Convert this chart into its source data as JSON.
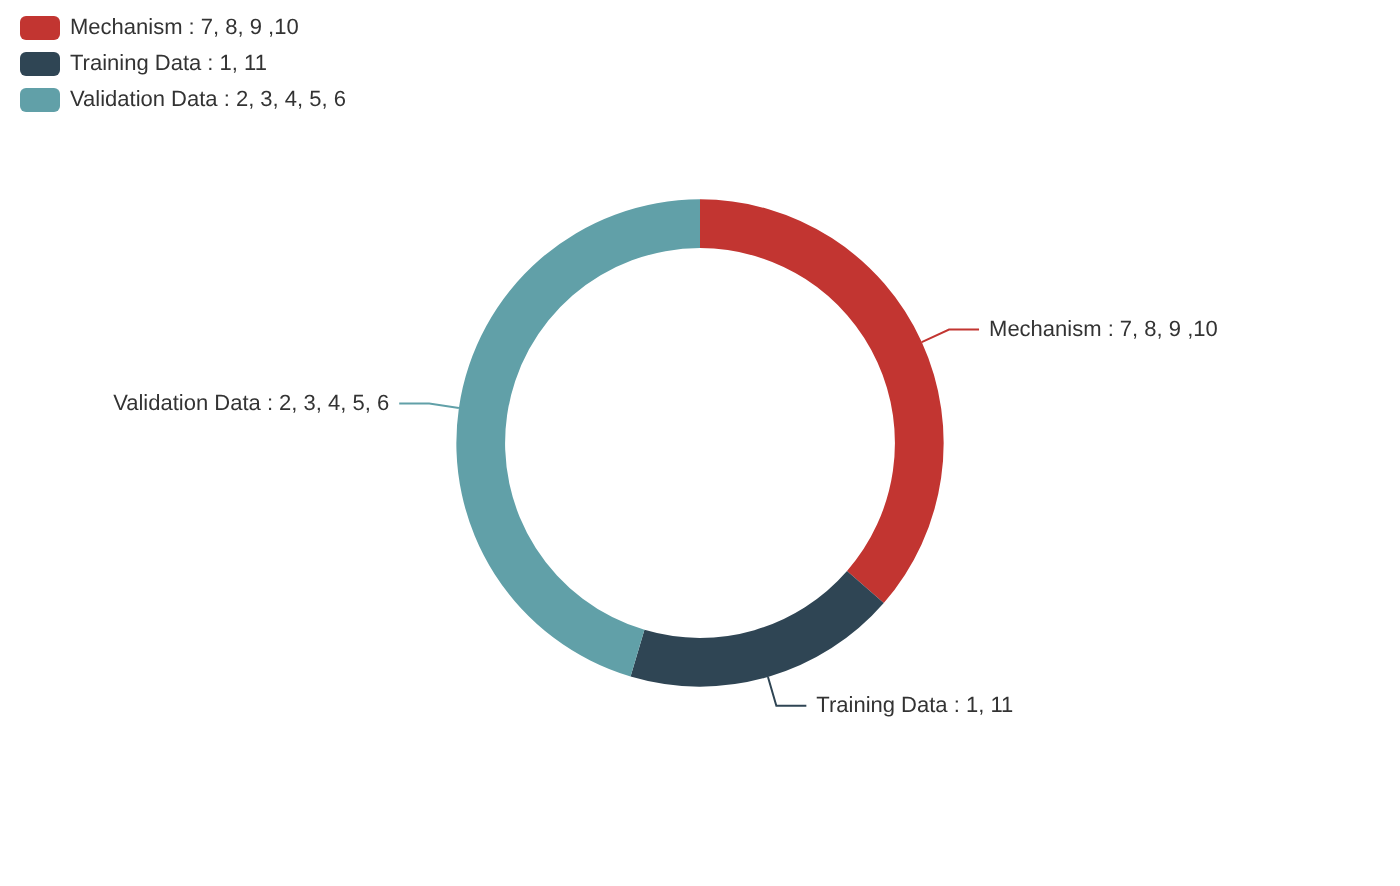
{
  "chart_data": {
    "type": "donut",
    "categories": [
      "Mechanism : 7, 8, 9 ,10",
      "Training Data : 1, 11",
      "Validation Data : 2, 3, 4, 5, 6"
    ],
    "values": [
      36.4,
      18.2,
      45.4
    ],
    "colors": [
      "#c23531",
      "#2f4554",
      "#61a0a8"
    ],
    "legend": "top left"
  }
}
